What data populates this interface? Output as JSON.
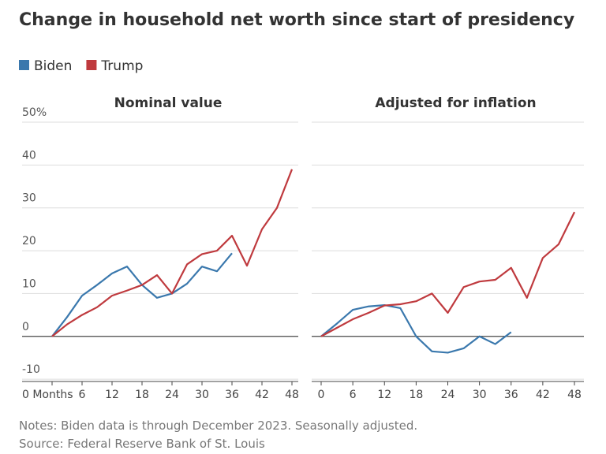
{
  "title": "Change in household net worth since start of presidency",
  "notes": "Notes: Biden data is through December 2023. Seasonally adjusted.",
  "source": "Source: Federal Reserve Bank of St. Louis",
  "chart_data": [
    {
      "type": "line",
      "title": "Nominal value",
      "xlim": [
        0,
        48
      ],
      "xticks": [
        {
          "value": 0,
          "label": "0 Months"
        },
        6,
        12,
        18,
        24,
        30,
        36,
        42,
        48
      ],
      "ylim": [
        -12,
        50
      ],
      "yticks": [
        -10,
        0,
        10,
        20,
        30,
        40,
        {
          "value": 50,
          "label": "50%"
        }
      ],
      "grid": true,
      "series": [
        {
          "name": "Biden",
          "color": "#3a78ad",
          "x": [
            0,
            3,
            6,
            9,
            12,
            15,
            18,
            21,
            24,
            27,
            30,
            33,
            36
          ],
          "values": [
            0,
            4.5,
            9.5,
            12,
            14.7,
            16.3,
            12,
            9,
            10,
            12.3,
            16.3,
            15.2,
            19.4
          ]
        },
        {
          "name": "Trump",
          "color": "#bf3a3e",
          "x": [
            0,
            3,
            6,
            9,
            12,
            15,
            18,
            21,
            24,
            27,
            30,
            33,
            36,
            39,
            42,
            45,
            48
          ],
          "values": [
            0,
            2.8,
            5,
            6.8,
            9.5,
            10.7,
            12,
            14.3,
            10,
            16.8,
            19.2,
            20,
            23.5,
            16.5,
            25,
            30,
            39
          ]
        }
      ]
    },
    {
      "type": "line",
      "title": "Adjusted for inflation",
      "xlim": [
        0,
        48
      ],
      "xticks": [
        0,
        6,
        12,
        18,
        24,
        30,
        36,
        42,
        48
      ],
      "ylim": [
        -12,
        50
      ],
      "grid": true,
      "series": [
        {
          "name": "Biden",
          "color": "#3a78ad",
          "x": [
            0,
            3,
            6,
            9,
            12,
            15,
            18,
            21,
            24,
            27,
            30,
            33,
            36
          ],
          "values": [
            0,
            3,
            6.2,
            7,
            7.3,
            6.6,
            0,
            -3.5,
            -3.8,
            -2.8,
            0,
            -1.8,
            1
          ]
        },
        {
          "name": "Trump",
          "color": "#bf3a3e",
          "x": [
            0,
            3,
            6,
            9,
            12,
            15,
            18,
            21,
            24,
            27,
            30,
            33,
            36,
            39,
            42,
            45,
            48
          ],
          "values": [
            0,
            2,
            4,
            5.5,
            7.2,
            7.5,
            8.2,
            10,
            5.5,
            11.5,
            12.8,
            13.2,
            16,
            9,
            18.3,
            21.5,
            29
          ]
        }
      ]
    }
  ]
}
